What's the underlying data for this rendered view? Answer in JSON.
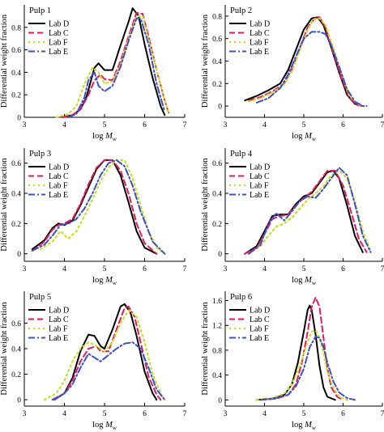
{
  "chart_data": [
    {
      "type": "line",
      "panel_label": "Pulp 1",
      "xlabel": "log M_w",
      "ylabel": "Differential weight fraction",
      "xlim": [
        3,
        7
      ],
      "ylim": [
        0,
        1.0
      ],
      "xticks": [
        3,
        4,
        5,
        6,
        7
      ],
      "yticks": [
        0,
        0.2,
        0.4,
        0.6,
        0.8
      ],
      "ytick_labels": [
        "0",
        "0.2",
        "0.4",
        "0.6",
        "0.8"
      ],
      "legend": "top-left",
      "series": [
        {
          "name": "Lab D",
          "x": [
            3.95,
            4.2,
            4.4,
            4.55,
            4.75,
            4.85,
            5.0,
            5.2,
            5.4,
            5.6,
            5.7,
            5.85,
            6.0,
            6.2,
            6.4,
            6.5
          ],
          "y": [
            0,
            0.02,
            0.07,
            0.18,
            0.44,
            0.48,
            0.42,
            0.42,
            0.64,
            0.85,
            0.97,
            0.9,
            0.65,
            0.35,
            0.1,
            0.02
          ]
        },
        {
          "name": "Lab C",
          "x": [
            3.95,
            4.2,
            4.4,
            4.6,
            4.75,
            4.9,
            5.0,
            5.2,
            5.4,
            5.6,
            5.8,
            5.95,
            6.1,
            6.3,
            6.5,
            6.6
          ],
          "y": [
            0,
            0.02,
            0.07,
            0.2,
            0.33,
            0.38,
            0.34,
            0.33,
            0.5,
            0.72,
            0.93,
            0.92,
            0.72,
            0.42,
            0.15,
            0.04
          ]
        },
        {
          "name": "Lab F",
          "x": [
            3.8,
            4.1,
            4.3,
            4.5,
            4.7,
            4.85,
            5.0,
            5.2,
            5.4,
            5.6,
            5.8,
            5.95,
            6.1,
            6.3,
            6.5,
            6.6
          ],
          "y": [
            0,
            0.03,
            0.1,
            0.3,
            0.44,
            0.4,
            0.3,
            0.32,
            0.47,
            0.7,
            0.9,
            0.9,
            0.7,
            0.42,
            0.15,
            0.04
          ]
        },
        {
          "name": "Lab E",
          "x": [
            4.1,
            4.3,
            4.5,
            4.6,
            4.75,
            4.85,
            5.0,
            5.2,
            5.4,
            5.6,
            5.8,
            5.9,
            6.1,
            6.3,
            6.5
          ],
          "y": [
            0,
            0.03,
            0.18,
            0.33,
            0.4,
            0.28,
            0.23,
            0.28,
            0.45,
            0.68,
            0.88,
            0.88,
            0.65,
            0.3,
            0.05
          ]
        }
      ]
    },
    {
      "type": "line",
      "panel_label": "Pulp 2",
      "xlabel": "log M_w",
      "ylabel": "Differential weight fraction",
      "xlim": [
        3,
        7
      ],
      "ylim": [
        -0.1,
        0.9
      ],
      "xticks": [
        3,
        4,
        5,
        6,
        7
      ],
      "yticks": [
        0,
        0.2,
        0.4,
        0.6,
        0.8
      ],
      "ytick_labels": [
        "0",
        "0.2",
        "0.4",
        "0.6",
        "0.8"
      ],
      "legend": "top-left",
      "series": [
        {
          "name": "Lab D",
          "x": [
            3.5,
            3.8,
            4.1,
            4.4,
            4.6,
            4.8,
            5.0,
            5.2,
            5.35,
            5.5,
            5.7,
            5.9,
            6.1,
            6.3,
            6.5
          ],
          "y": [
            0.05,
            0.09,
            0.14,
            0.2,
            0.32,
            0.5,
            0.68,
            0.78,
            0.79,
            0.72,
            0.52,
            0.3,
            0.1,
            0.02,
            0
          ]
        },
        {
          "name": "Lab C",
          "x": [
            3.6,
            3.9,
            4.2,
            4.5,
            4.7,
            4.9,
            5.1,
            5.3,
            5.4,
            5.55,
            5.75,
            5.95,
            6.15,
            6.35,
            6.5
          ],
          "y": [
            0.05,
            0.08,
            0.13,
            0.2,
            0.33,
            0.52,
            0.7,
            0.79,
            0.79,
            0.7,
            0.48,
            0.26,
            0.08,
            0.01,
            0
          ]
        },
        {
          "name": "Lab F",
          "x": [
            3.6,
            3.9,
            4.2,
            4.5,
            4.7,
            4.9,
            5.1,
            5.25,
            5.4,
            5.55,
            5.75,
            5.95,
            6.15,
            6.35,
            6.5
          ],
          "y": [
            0.04,
            0.07,
            0.12,
            0.19,
            0.31,
            0.5,
            0.68,
            0.77,
            0.78,
            0.72,
            0.52,
            0.3,
            0.1,
            0.02,
            0
          ]
        },
        {
          "name": "Lab E",
          "x": [
            3.8,
            4.1,
            4.4,
            4.6,
            4.8,
            5.0,
            5.2,
            5.4,
            5.55,
            5.7,
            5.9,
            6.1,
            6.3,
            6.5,
            6.6
          ],
          "y": [
            0.03,
            0.07,
            0.16,
            0.28,
            0.44,
            0.6,
            0.66,
            0.66,
            0.64,
            0.54,
            0.35,
            0.15,
            0.04,
            0,
            0
          ]
        }
      ]
    },
    {
      "type": "line",
      "panel_label": "Pulp 3",
      "xlabel": "log M_w",
      "ylabel": "Differential weight fraction",
      "xlim": [
        3,
        7
      ],
      "ylim": [
        -0.05,
        0.7
      ],
      "xticks": [
        3,
        4,
        5,
        6,
        7
      ],
      "yticks": [
        0,
        0.2,
        0.4,
        0.6
      ],
      "ytick_labels": [
        "0",
        "0.2",
        "0.4",
        "0.6"
      ],
      "legend": "top-left",
      "series": [
        {
          "name": "Lab D",
          "x": [
            3.2,
            3.5,
            3.7,
            3.85,
            4.0,
            4.2,
            4.4,
            4.6,
            4.8,
            5.0,
            5.2,
            5.4,
            5.6,
            5.8,
            6.0,
            6.3
          ],
          "y": [
            0.03,
            0.09,
            0.17,
            0.2,
            0.19,
            0.22,
            0.32,
            0.44,
            0.56,
            0.62,
            0.62,
            0.52,
            0.34,
            0.15,
            0.04,
            0
          ]
        },
        {
          "name": "Lab C",
          "x": [
            3.2,
            3.5,
            3.7,
            3.85,
            4.0,
            4.2,
            4.4,
            4.6,
            4.8,
            5.0,
            5.2,
            5.4,
            5.6,
            5.8,
            6.0,
            6.3
          ],
          "y": [
            0.02,
            0.08,
            0.16,
            0.19,
            0.2,
            0.23,
            0.33,
            0.46,
            0.57,
            0.62,
            0.62,
            0.55,
            0.4,
            0.2,
            0.07,
            0
          ]
        },
        {
          "name": "Lab F",
          "x": [
            3.4,
            3.7,
            3.9,
            4.1,
            4.3,
            4.5,
            4.7,
            4.9,
            5.1,
            5.3,
            5.5,
            5.7,
            5.9,
            6.1,
            6.3,
            6.5
          ],
          "y": [
            0.03,
            0.08,
            0.15,
            0.1,
            0.15,
            0.25,
            0.36,
            0.48,
            0.57,
            0.62,
            0.62,
            0.5,
            0.32,
            0.15,
            0.04,
            0
          ]
        },
        {
          "name": "Lab E",
          "x": [
            3.2,
            3.5,
            3.7,
            3.9,
            4.1,
            4.3,
            4.5,
            4.7,
            4.9,
            5.1,
            5.3,
            5.5,
            5.7,
            5.9,
            6.2,
            6.5
          ],
          "y": [
            0.02,
            0.06,
            0.12,
            0.19,
            0.2,
            0.23,
            0.3,
            0.4,
            0.52,
            0.6,
            0.62,
            0.58,
            0.45,
            0.28,
            0.08,
            0
          ]
        }
      ]
    },
    {
      "type": "line",
      "panel_label": "Pulp 4",
      "xlabel": "log M_w",
      "ylabel": "Differential weight fraction",
      "xlim": [
        3,
        7
      ],
      "ylim": [
        -0.05,
        0.7
      ],
      "xticks": [
        3,
        4,
        5,
        6,
        7
      ],
      "yticks": [
        0,
        0.2,
        0.4,
        0.6
      ],
      "ytick_labels": [
        "0",
        "0.2",
        "0.4",
        "0.6"
      ],
      "legend": "top-left",
      "series": [
        {
          "name": "Lab D",
          "x": [
            3.5,
            3.8,
            4.0,
            4.2,
            4.4,
            4.6,
            4.8,
            5.0,
            5.2,
            5.4,
            5.6,
            5.75,
            5.9,
            6.1,
            6.3,
            6.5
          ],
          "y": [
            0,
            0.05,
            0.15,
            0.25,
            0.26,
            0.26,
            0.33,
            0.38,
            0.4,
            0.47,
            0.54,
            0.55,
            0.5,
            0.32,
            0.12,
            0.01
          ]
        },
        {
          "name": "Lab C",
          "x": [
            3.5,
            3.8,
            4.0,
            4.2,
            4.4,
            4.6,
            4.8,
            5.0,
            5.2,
            5.4,
            5.6,
            5.8,
            6.0,
            6.2,
            6.4,
            6.6
          ],
          "y": [
            0,
            0.04,
            0.13,
            0.23,
            0.25,
            0.26,
            0.32,
            0.37,
            0.41,
            0.48,
            0.55,
            0.55,
            0.45,
            0.28,
            0.1,
            0.01
          ]
        },
        {
          "name": "Lab F",
          "x": [
            3.6,
            3.9,
            4.1,
            4.3,
            4.5,
            4.7,
            4.9,
            5.1,
            5.3,
            5.5,
            5.7,
            5.9,
            6.1,
            6.3,
            6.5,
            6.7
          ],
          "y": [
            0,
            0.05,
            0.12,
            0.18,
            0.2,
            0.24,
            0.3,
            0.36,
            0.4,
            0.45,
            0.52,
            0.55,
            0.5,
            0.35,
            0.15,
            0.02
          ]
        },
        {
          "name": "Lab E",
          "x": [
            3.6,
            3.9,
            4.1,
            4.3,
            4.5,
            4.7,
            4.9,
            5.1,
            5.3,
            5.5,
            5.7,
            5.9,
            6.1,
            6.3,
            6.5,
            6.7
          ],
          "y": [
            0,
            0.06,
            0.2,
            0.27,
            0.22,
            0.28,
            0.35,
            0.38,
            0.37,
            0.43,
            0.5,
            0.57,
            0.52,
            0.33,
            0.12,
            0.01
          ]
        }
      ]
    },
    {
      "type": "line",
      "panel_label": "Pulp 5",
      "xlabel": "log M_w",
      "ylabel": "Differential weight fraction",
      "xlim": [
        3,
        7
      ],
      "ylim": [
        -0.05,
        0.85
      ],
      "xticks": [
        3,
        4,
        5,
        6,
        7
      ],
      "yticks": [
        0,
        0.2,
        0.4,
        0.6
      ],
      "ytick_labels": [
        "0",
        "0.2",
        "0.4",
        "0.6"
      ],
      "legend": "top-left",
      "series": [
        {
          "name": "Lab D",
          "x": [
            3.75,
            4.0,
            4.2,
            4.4,
            4.6,
            4.75,
            4.9,
            5.0,
            5.2,
            5.4,
            5.5,
            5.65,
            5.8,
            6.0,
            6.2,
            6.3
          ],
          "y": [
            0,
            0.05,
            0.17,
            0.38,
            0.51,
            0.5,
            0.42,
            0.4,
            0.55,
            0.73,
            0.75,
            0.68,
            0.5,
            0.22,
            0.05,
            0
          ]
        },
        {
          "name": "Lab C",
          "x": [
            3.75,
            4.0,
            4.2,
            4.4,
            4.6,
            4.8,
            4.9,
            5.1,
            5.3,
            5.5,
            5.6,
            5.75,
            5.9,
            6.1,
            6.3,
            6.4
          ],
          "y": [
            0,
            0.05,
            0.15,
            0.3,
            0.4,
            0.42,
            0.38,
            0.38,
            0.55,
            0.72,
            0.73,
            0.65,
            0.45,
            0.18,
            0.04,
            0
          ]
        },
        {
          "name": "Lab F",
          "x": [
            3.5,
            3.8,
            4.0,
            4.2,
            4.4,
            4.6,
            4.8,
            5.0,
            5.2,
            5.4,
            5.6,
            5.8,
            6.0,
            6.2,
            6.4,
            6.5
          ],
          "y": [
            0,
            0.05,
            0.15,
            0.3,
            0.4,
            0.45,
            0.42,
            0.38,
            0.45,
            0.6,
            0.7,
            0.65,
            0.45,
            0.2,
            0.05,
            0
          ]
        },
        {
          "name": "Lab E",
          "x": [
            3.7,
            4.0,
            4.2,
            4.4,
            4.6,
            4.8,
            4.9,
            5.1,
            5.3,
            5.5,
            5.7,
            5.9,
            6.1,
            6.3,
            6.5
          ],
          "y": [
            0,
            0.05,
            0.12,
            0.25,
            0.36,
            0.32,
            0.3,
            0.35,
            0.4,
            0.44,
            0.45,
            0.4,
            0.25,
            0.08,
            0
          ]
        }
      ]
    },
    {
      "type": "line",
      "panel_label": "Pulp 6",
      "xlabel": "log M_w",
      "ylabel": "Differential weight fraction",
      "xlim": [
        3,
        7
      ],
      "ylim": [
        -0.1,
        1.75
      ],
      "xticks": [
        3,
        4,
        5,
        6,
        7
      ],
      "yticks": [
        0,
        0.4,
        0.8,
        1.2,
        1.6
      ],
      "ytick_labels": [
        "0",
        "0.4",
        "0.8",
        "1.2",
        "1.6"
      ],
      "legend": "top-left",
      "series": [
        {
          "name": "Lab D",
          "x": [
            3.8,
            4.2,
            4.5,
            4.7,
            4.85,
            5.0,
            5.1,
            5.15,
            5.2,
            5.3,
            5.4,
            5.5,
            5.6,
            5.8
          ],
          "y": [
            0,
            0.02,
            0.08,
            0.25,
            0.6,
            1.1,
            1.45,
            1.52,
            1.45,
            1.05,
            0.55,
            0.2,
            0.05,
            0
          ]
        },
        {
          "name": "Lab C",
          "x": [
            3.9,
            4.3,
            4.6,
            4.8,
            4.95,
            5.1,
            5.2,
            5.3,
            5.4,
            5.5,
            5.6,
            5.7,
            5.85,
            6.0
          ],
          "y": [
            0,
            0.02,
            0.08,
            0.25,
            0.6,
            1.1,
            1.5,
            1.65,
            1.5,
            1.0,
            0.5,
            0.2,
            0.05,
            0
          ]
        },
        {
          "name": "Lab F",
          "x": [
            3.8,
            4.2,
            4.5,
            4.7,
            4.9,
            5.05,
            5.2,
            5.3,
            5.4,
            5.5,
            5.6,
            5.75,
            5.9,
            6.1
          ],
          "y": [
            0,
            0.03,
            0.1,
            0.25,
            0.55,
            0.85,
            1.1,
            1.12,
            1.0,
            0.75,
            0.45,
            0.2,
            0.05,
            0
          ]
        },
        {
          "name": "Lab E",
          "x": [
            3.9,
            4.3,
            4.6,
            4.8,
            5.0,
            5.15,
            5.3,
            5.4,
            5.5,
            5.6,
            5.75,
            5.9,
            6.1,
            6.3
          ],
          "y": [
            0,
            0.03,
            0.08,
            0.22,
            0.5,
            0.85,
            1.02,
            1.0,
            0.85,
            0.6,
            0.3,
            0.12,
            0.03,
            0
          ]
        }
      ]
    }
  ],
  "styles": {
    "Lab D": {
      "color": "#000000",
      "dash": "",
      "width": 2.0
    },
    "Lab C": {
      "color": "#e8175d",
      "dash": "7,4",
      "width": 2.0
    },
    "Lab F": {
      "color": "#c8e024",
      "dash": "2,4",
      "width": 2.2
    },
    "Lab E": {
      "color": "#3a4fc8",
      "dash": "8,3,2,3",
      "width": 2.0
    }
  }
}
